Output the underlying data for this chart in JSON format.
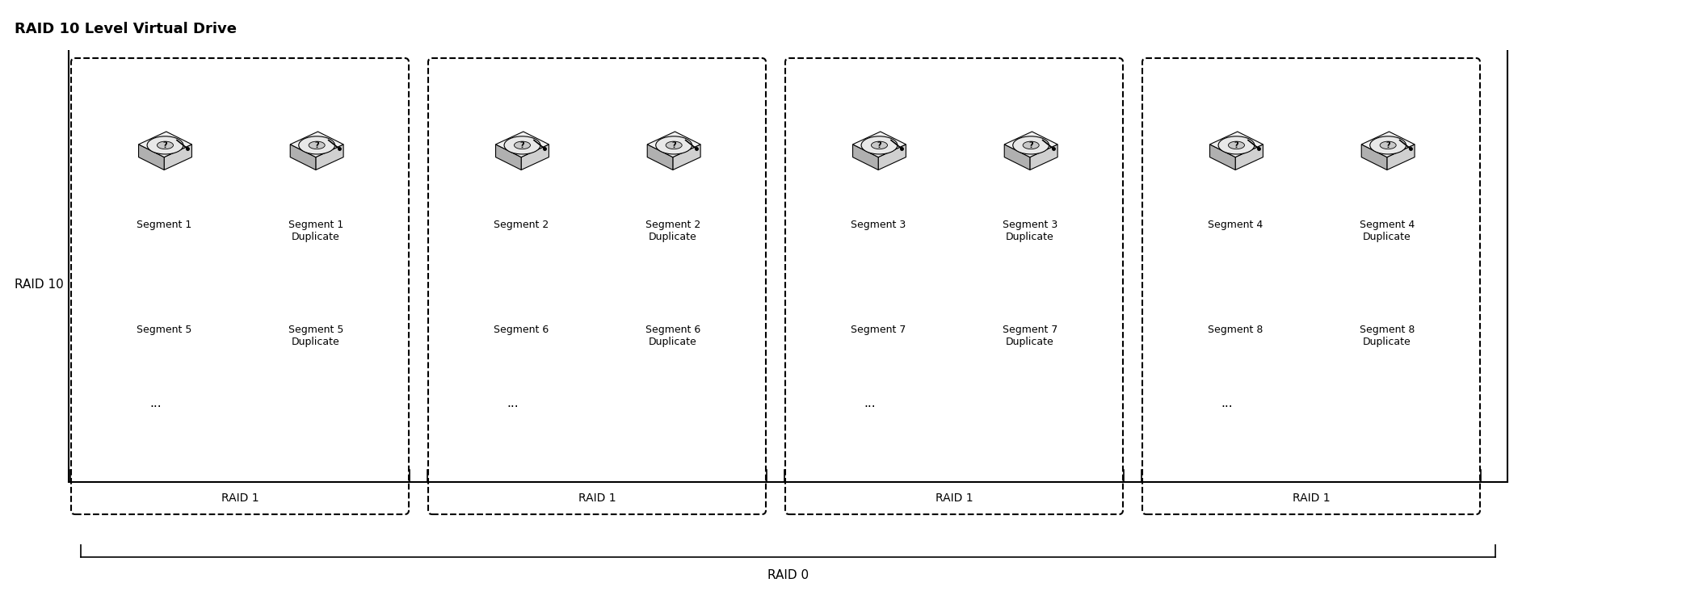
{
  "title": "RAID 10 Level Virtual Drive",
  "title_fontsize": 13,
  "title_fontweight": "bold",
  "raid10_label": "RAID 10",
  "raid0_label": "RAID 0",
  "raid1_label": "RAID 1",
  "groups": [
    {
      "segments": [
        [
          "Segment 1",
          "Segment 1\nDuplicate"
        ],
        [
          "Segment 5",
          "Segment 5\nDuplicate"
        ]
      ],
      "disk_nums": [
        1,
        1
      ]
    },
    {
      "segments": [
        [
          "Segment 2",
          "Segment 2\nDuplicate"
        ],
        [
          "Segment 6",
          "Segment 6\nDuplicate"
        ]
      ],
      "disk_nums": [
        2,
        2
      ]
    },
    {
      "segments": [
        [
          "Segment 3",
          "Segment 3\nDuplicate"
        ],
        [
          "Segment 7",
          "Segment 7\nDuplicate"
        ]
      ],
      "disk_nums": [
        3,
        3
      ]
    },
    {
      "segments": [
        [
          "Segment 4",
          "Segment 4\nDuplicate"
        ],
        [
          "Segment 8",
          "Segment 8\nDuplicate"
        ]
      ],
      "disk_nums": [
        4,
        4
      ]
    }
  ],
  "fig_width": 20.87,
  "fig_height": 7.32,
  "bg_color": "#ffffff",
  "box_edge_color": "#000000",
  "text_color": "#000000",
  "font_family": "DejaVu Sans"
}
